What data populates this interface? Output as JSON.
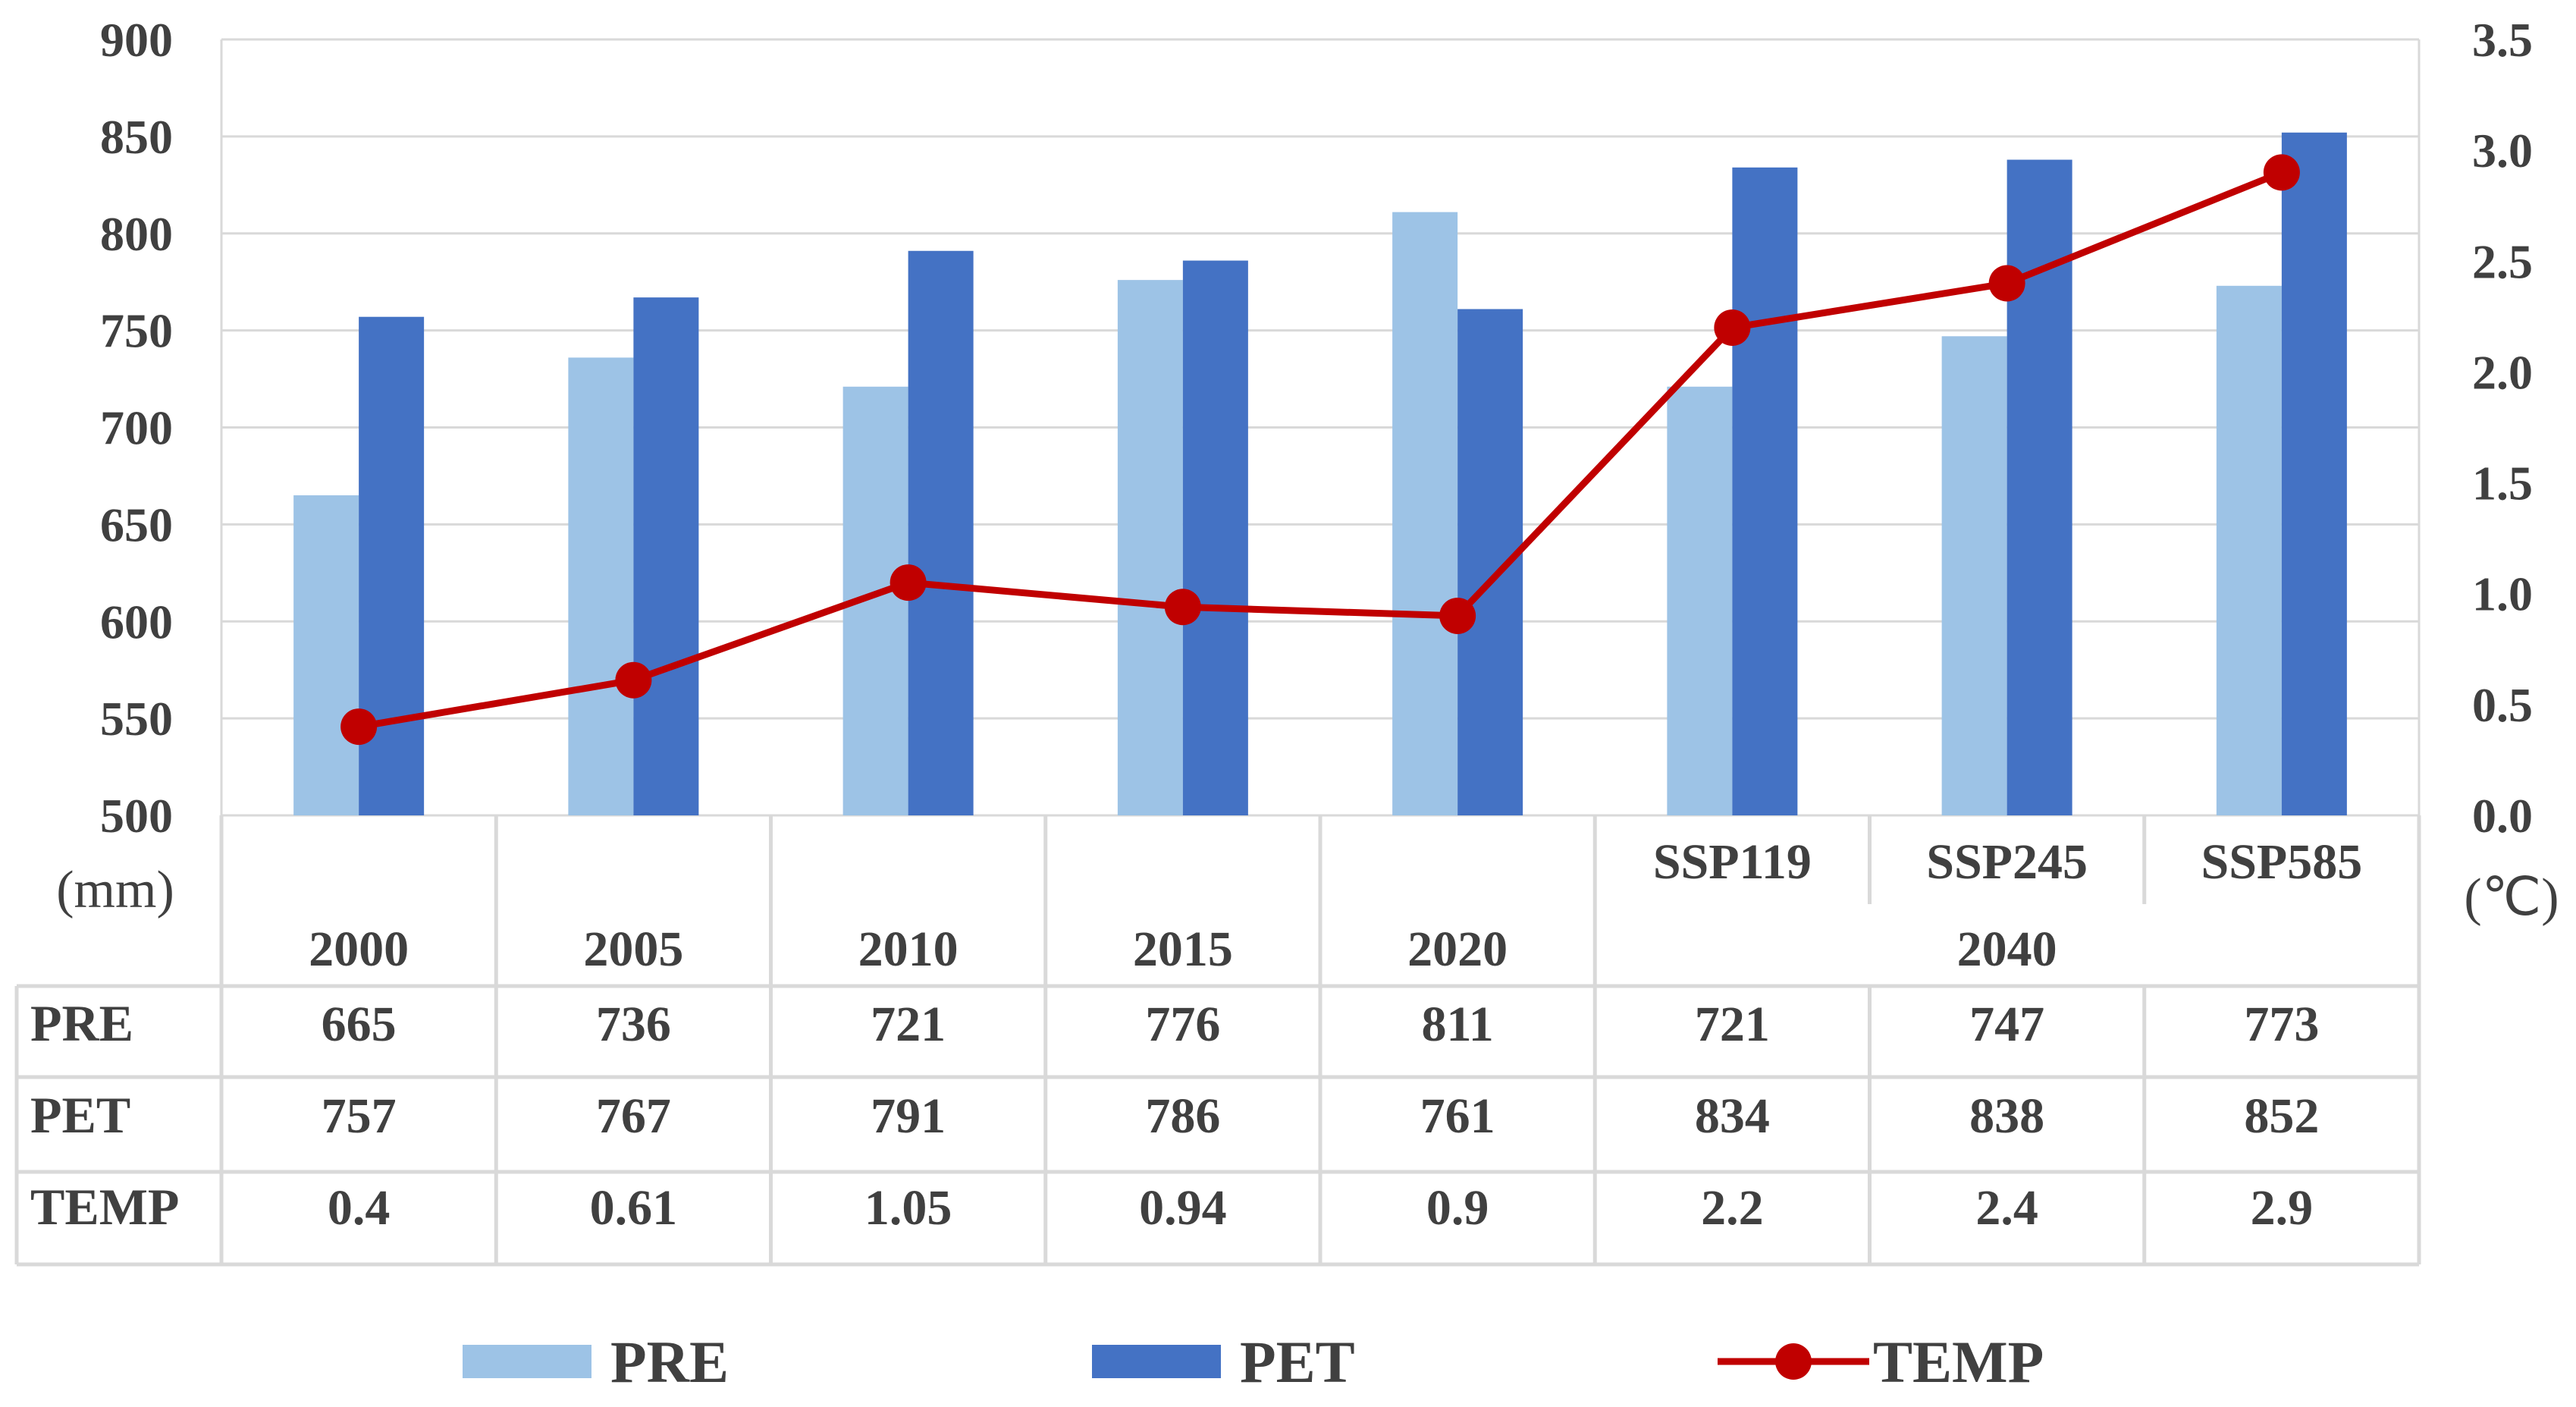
{
  "chart_data": {
    "type": "bar",
    "categories": [
      "2000",
      "2005",
      "2010",
      "2015",
      "2020",
      "SSP119",
      "SSP245",
      "SSP585"
    ],
    "category_group": {
      "label": "2040",
      "members": [
        "SSP119",
        "SSP245",
        "SSP585"
      ]
    },
    "series": [
      {
        "name": "PRE",
        "type": "bar",
        "axis": "left",
        "color": "#9dc3e6",
        "values": [
          665,
          736,
          721,
          776,
          811,
          721,
          747,
          773
        ]
      },
      {
        "name": "PET",
        "type": "bar",
        "axis": "left",
        "color": "#4472c4",
        "values": [
          757,
          767,
          791,
          786,
          761,
          834,
          838,
          852
        ]
      },
      {
        "name": "TEMP",
        "type": "line",
        "axis": "right",
        "color": "#c00000",
        "values": [
          0.4,
          0.61,
          1.05,
          0.94,
          0.9,
          2.2,
          2.4,
          2.9
        ]
      }
    ],
    "left_axis": {
      "label": "(mm)",
      "min": 500,
      "max": 900,
      "ticks": [
        "900",
        "850",
        "800",
        "750",
        "700",
        "650",
        "600",
        "550",
        "500"
      ]
    },
    "right_axis": {
      "label": "(℃)",
      "min": 0,
      "max": 3.5,
      "ticks": [
        "3.5",
        "3.0",
        "2.5",
        "2.0",
        "1.5",
        "1.0",
        "0.5",
        "0.0"
      ]
    },
    "table": {
      "rows": [
        {
          "name": "PRE",
          "cells": [
            "665",
            "736",
            "721",
            "776",
            "811",
            "721",
            "747",
            "773"
          ]
        },
        {
          "name": "PET",
          "cells": [
            "757",
            "767",
            "791",
            "786",
            "761",
            "834",
            "838",
            "852"
          ]
        },
        {
          "name": "TEMP",
          "cells": [
            "0.4",
            "0.61",
            "1.05",
            "0.94",
            "0.9",
            "2.2",
            "2.4",
            "2.9"
          ]
        }
      ]
    },
    "legend": {
      "position": "bottom",
      "items": [
        "PRE",
        "PET",
        "TEMP"
      ]
    },
    "grid": true
  }
}
